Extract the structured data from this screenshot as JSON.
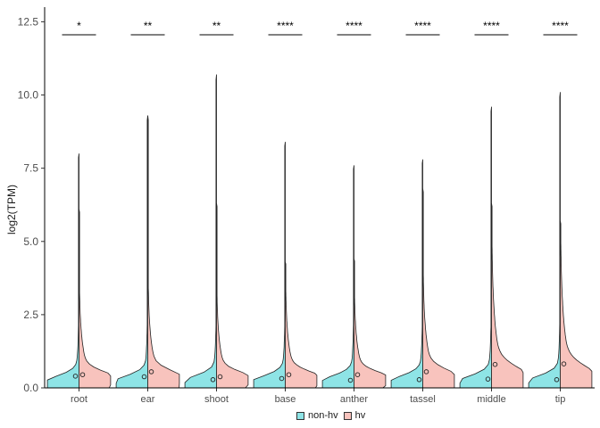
{
  "chart_data": {
    "type": "split-violin",
    "title": "",
    "xlabel": "",
    "ylabel": "log2(TPM)",
    "ylim": [
      0,
      13
    ],
    "yticks": [
      "0.0",
      "2.5",
      "5.0",
      "7.5",
      "10.0",
      "12.5"
    ],
    "categories": [
      "root",
      "ear",
      "shoot",
      "base",
      "anther",
      "tassel",
      "middle",
      "tip"
    ],
    "significance": [
      "*",
      "**",
      "**",
      "****",
      "****",
      "****",
      "****",
      "****"
    ],
    "legend_position": "bottom",
    "series": [
      {
        "name": "non-hv",
        "color": "#8ee4e6",
        "medians": [
          0.4,
          0.38,
          0.28,
          0.32,
          0.26,
          0.28,
          0.3,
          0.28
        ],
        "max": [
          8.0,
          9.3,
          10.7,
          8.4,
          7.6,
          7.8,
          9.6,
          10.1
        ]
      },
      {
        "name": "hv",
        "color": "#f8c3bd",
        "medians": [
          0.45,
          0.55,
          0.38,
          0.45,
          0.45,
          0.55,
          0.8,
          0.82
        ],
        "max": [
          6.1,
          9.3,
          6.3,
          4.3,
          4.4,
          6.8,
          6.3,
          5.7
        ]
      }
    ]
  }
}
